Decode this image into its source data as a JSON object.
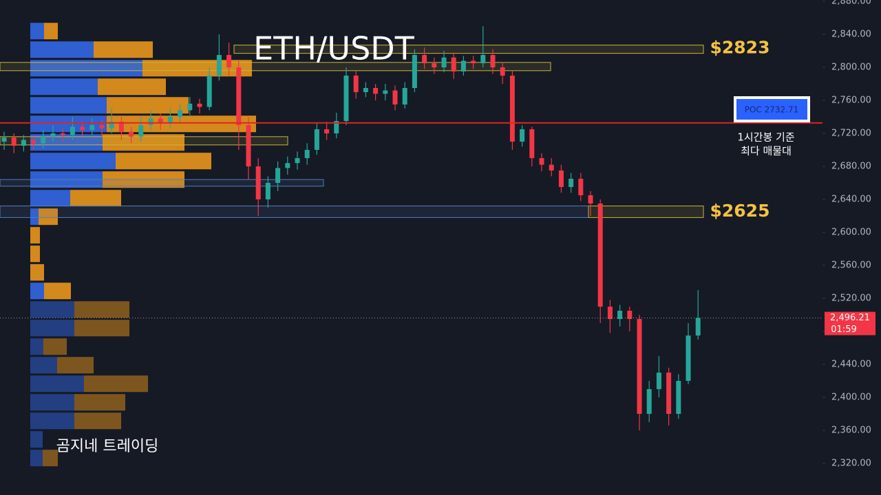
{
  "chart_data": {
    "type": "candlestick",
    "title": "ETH/USDT",
    "watermark": "곰지네 트레이딩",
    "ylim": [
      2280,
      2880
    ],
    "yticks": [
      {
        "value": 2880,
        "label": "2,880.00"
      },
      {
        "value": 2840,
        "label": "2,840.00"
      },
      {
        "value": 2800,
        "label": "2,800.00"
      },
      {
        "value": 2760,
        "label": "2,760.00"
      },
      {
        "value": 2720,
        "label": "2,720.00"
      },
      {
        "value": 2680,
        "label": "2,680.00"
      },
      {
        "value": 2640,
        "label": "2,640.00"
      },
      {
        "value": 2600,
        "label": "2,600.00"
      },
      {
        "value": 2560,
        "label": "2,560.00"
      },
      {
        "value": 2520,
        "label": "2,520.00"
      },
      {
        "value": 2480,
        "label": "2,480.00"
      },
      {
        "value": 2440,
        "label": "2,440.00"
      },
      {
        "value": 2400,
        "label": "2,400.00"
      },
      {
        "value": 2360,
        "label": "2,360.00"
      },
      {
        "value": 2320,
        "label": "2,320.00"
      }
    ],
    "up_color": "#26a69a",
    "down_color": "#f23645",
    "open": [
      2710,
      2715,
      2705,
      2712,
      2708,
      2716,
      2720,
      2718,
      2728,
      2724,
      2730,
      2726,
      2734,
      2722,
      2716,
      2730,
      2738,
      2732,
      2740,
      2748,
      2756,
      2752,
      2790,
      2815,
      2800,
      2730,
      2680,
      2640,
      2660,
      2678,
      2684,
      2690,
      2700,
      2725,
      2720,
      2735,
      2790,
      2770,
      2775,
      2768,
      2772,
      2755,
      2775,
      2815,
      2805,
      2800,
      2812,
      2795,
      2808,
      2805,
      2815,
      2800,
      2790,
      2710,
      2725,
      2690,
      2682,
      2675,
      2655,
      2665,
      2645,
      2635,
      2510,
      2495,
      2505,
      2495,
      2380,
      2410,
      2430,
      2380,
      2420,
      2475
    ],
    "high": [
      2722,
      2720,
      2718,
      2716,
      2724,
      2730,
      2726,
      2740,
      2734,
      2738,
      2736,
      2750,
      2740,
      2728,
      2740,
      2748,
      2744,
      2750,
      2756,
      2764,
      2762,
      2800,
      2840,
      2830,
      2808,
      2740,
      2690,
      2668,
      2686,
      2692,
      2698,
      2708,
      2732,
      2734,
      2745,
      2800,
      2796,
      2782,
      2780,
      2780,
      2778,
      2782,
      2822,
      2824,
      2812,
      2820,
      2818,
      2814,
      2814,
      2850,
      2822,
      2806,
      2796,
      2730,
      2728,
      2696,
      2690,
      2682,
      2672,
      2672,
      2650,
      2640,
      2518,
      2512,
      2510,
      2500,
      2420,
      2450,
      2436,
      2428,
      2490,
      2530
    ],
    "low": [
      2700,
      2696,
      2698,
      2700,
      2702,
      2710,
      2710,
      2712,
      2716,
      2718,
      2716,
      2720,
      2712,
      2708,
      2710,
      2724,
      2724,
      2726,
      2734,
      2742,
      2744,
      2748,
      2784,
      2790,
      2700,
      2664,
      2620,
      2630,
      2650,
      2670,
      2676,
      2682,
      2694,
      2712,
      2714,
      2730,
      2762,
      2764,
      2760,
      2760,
      2748,
      2750,
      2770,
      2798,
      2792,
      2794,
      2786,
      2790,
      2798,
      2800,
      2792,
      2780,
      2700,
      2704,
      2680,
      2674,
      2668,
      2648,
      2648,
      2638,
      2620,
      2490,
      2478,
      2486,
      2480,
      2360,
      2370,
      2400,
      2366,
      2374,
      2416,
      2470
    ],
    "close": [
      2715,
      2705,
      2712,
      2708,
      2716,
      2720,
      2718,
      2728,
      2724,
      2730,
      2726,
      2734,
      2722,
      2716,
      2730,
      2738,
      2732,
      2740,
      2748,
      2756,
      2752,
      2790,
      2815,
      2800,
      2730,
      2680,
      2640,
      2660,
      2678,
      2684,
      2690,
      2700,
      2725,
      2720,
      2735,
      2790,
      2770,
      2775,
      2768,
      2772,
      2755,
      2775,
      2815,
      2805,
      2800,
      2812,
      2795,
      2808,
      2805,
      2815,
      2800,
      2790,
      2710,
      2725,
      2690,
      2682,
      2675,
      2655,
      2665,
      2645,
      2635,
      2510,
      2495,
      2505,
      2495,
      2380,
      2410,
      2430,
      2380,
      2420,
      2475,
      2496.21
    ],
    "poc": {
      "value": 2732.71,
      "label": "POC  2732.71"
    },
    "poc_note": [
      "1시간봉 기준",
      "최다 매물대"
    ],
    "current_price": {
      "value": 2496.21,
      "label": "2,496.21"
    },
    "countdown": "01:59",
    "levels": [
      {
        "value": 2823,
        "label": "$2823"
      },
      {
        "value": 2625,
        "label": "$2625"
      }
    ],
    "zones": [
      {
        "low": 2817,
        "high": 2827,
        "color": "#c9b53a"
      },
      {
        "low": 2796,
        "high": 2806,
        "color": "#c9b53a"
      },
      {
        "low": 2706,
        "high": 2716,
        "color": "#c9b53a"
      },
      {
        "low": 2656,
        "high": 2664,
        "color": "#4f7fc0"
      },
      {
        "low": 2618,
        "high": 2632,
        "color": "#4f7fc0"
      },
      {
        "low": 2618,
        "high": 2632,
        "color": "#c9b53a"
      }
    ],
    "volume_profile": {
      "buy_color": "#2f5fd0",
      "sell_color": "#d4891c",
      "levels": [
        2844,
        2821.5,
        2799,
        2776.5,
        2754,
        2731.5,
        2709,
        2686.5,
        2664,
        2641.5,
        2619,
        2596.5,
        2574,
        2551.5,
        2529,
        2506.5,
        2484,
        2461.5,
        2439,
        2416.5,
        2394,
        2371.5,
        2349,
        2326.5
      ],
      "buy": [
        20,
        92,
        163,
        98,
        111,
        111,
        105,
        124,
        105,
        58,
        12,
        0,
        0,
        0,
        20,
        64,
        64,
        19,
        39,
        78,
        64,
        64,
        18,
        18
      ],
      "sell": [
        20,
        86,
        159,
        99,
        119,
        217,
        119,
        139,
        119,
        74,
        28,
        14,
        14,
        20,
        39,
        80,
        80,
        34,
        53,
        93,
        74,
        68,
        0,
        22
      ]
    }
  }
}
